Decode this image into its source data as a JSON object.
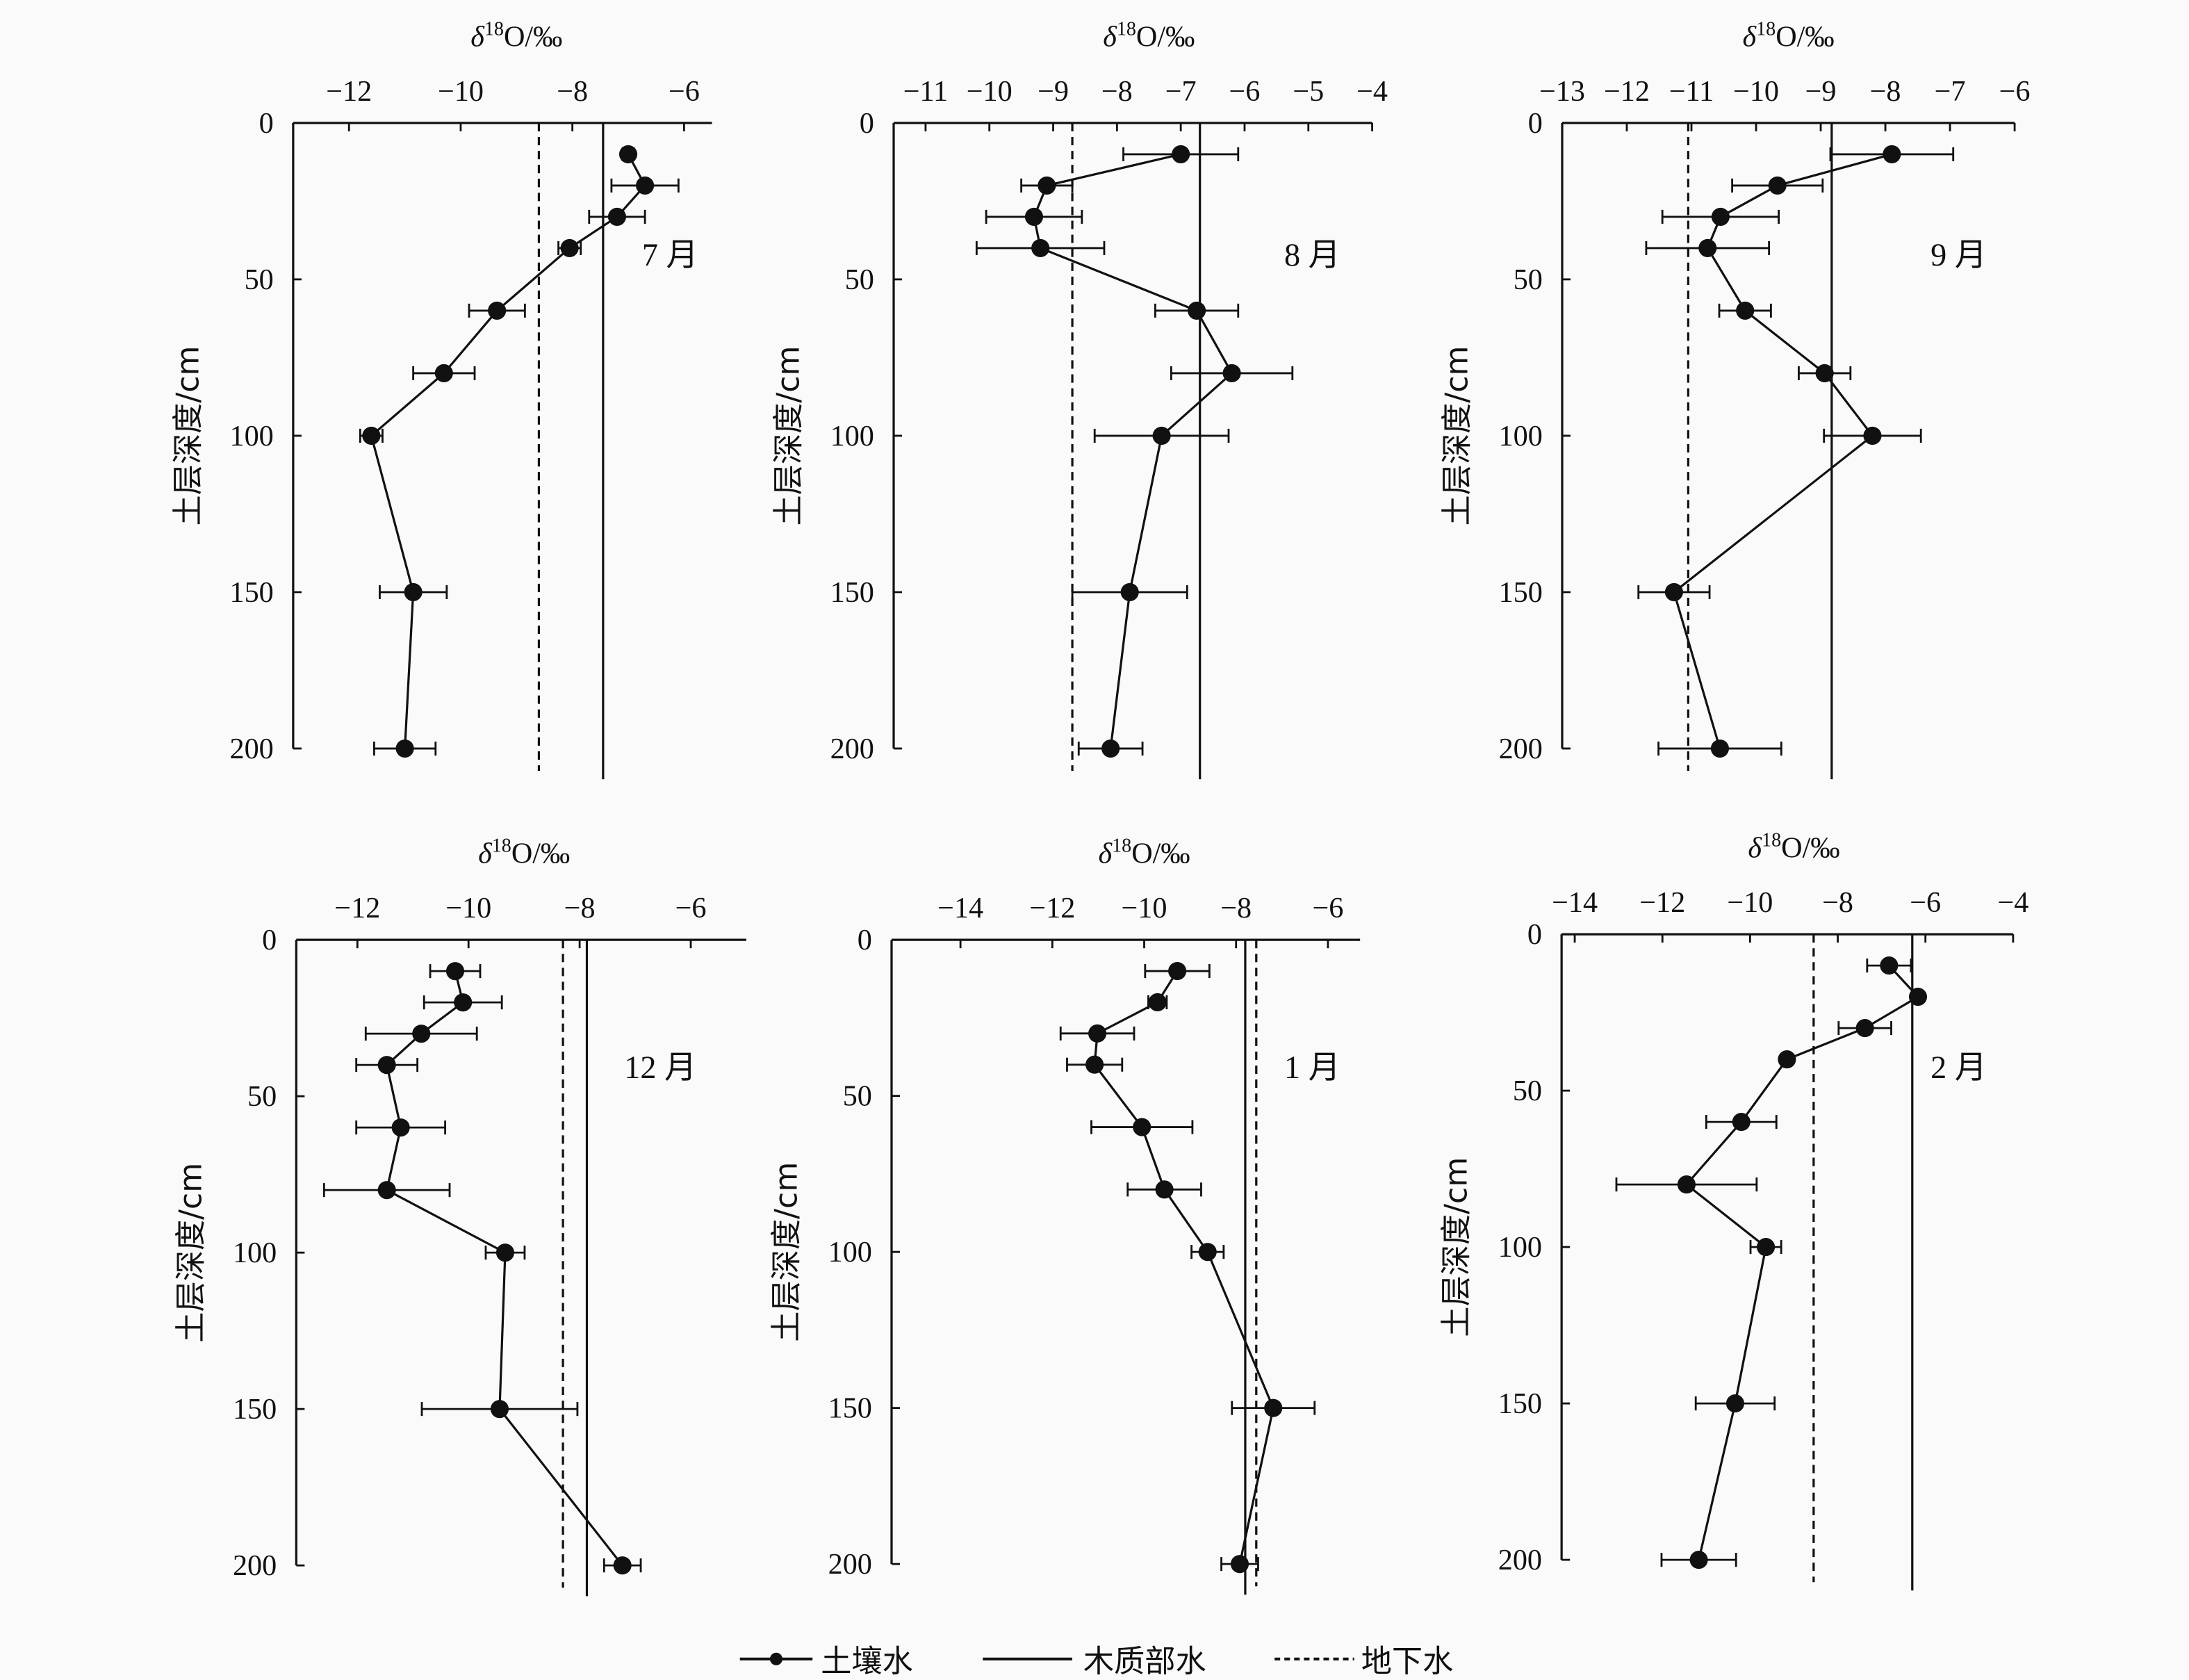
{
  "colors": {
    "ink": "#111111",
    "background": "#fafafa"
  },
  "legend": {
    "placement": "bottom-center",
    "items": [
      {
        "label": "土壤水",
        "style": "line-with-dot"
      },
      {
        "label": "木质部水",
        "style": "solid"
      },
      {
        "label": "地下水",
        "style": "dashed"
      }
    ]
  },
  "chart_data": [
    {
      "type": "line",
      "title": "7 月",
      "xlabel": "δ18O/‰",
      "ylabel": "土层深度/cm",
      "xlim": [
        -13,
        -5.5
      ],
      "ylim": [
        0,
        200
      ],
      "xticks": [
        -12,
        -10,
        -8,
        -6
      ],
      "yticks": [
        0,
        50,
        100,
        150,
        200
      ],
      "soil_water": {
        "depth": [
          10,
          20,
          30,
          40,
          60,
          80,
          100,
          150,
          200
        ],
        "values": [
          -7.0,
          -6.7,
          -7.2,
          -8.05,
          -9.35,
          -10.3,
          -11.6,
          -10.85,
          -11.0
        ],
        "errors": [
          0.1,
          0.6,
          0.5,
          0.2,
          0.5,
          0.55,
          0.2,
          0.6,
          0.55
        ]
      },
      "xylem_water": -7.45,
      "groundwater": -8.6
    },
    {
      "type": "line",
      "title": "8 月",
      "xlabel": "δ18O/‰",
      "ylabel": "土层深度/cm",
      "xlim": [
        -11.5,
        -4
      ],
      "ylim": [
        0,
        200
      ],
      "xticks": [
        -11,
        -10,
        -9,
        -8,
        -7,
        -6,
        -5,
        -4
      ],
      "yticks": [
        0,
        50,
        100,
        150,
        200
      ],
      "soil_water": {
        "depth": [
          10,
          20,
          30,
          40,
          60,
          80,
          100,
          150,
          200
        ],
        "values": [
          -7.0,
          -9.1,
          -9.3,
          -9.2,
          -6.75,
          -6.2,
          -7.3,
          -7.8,
          -8.1
        ],
        "errors": [
          0.9,
          0.4,
          0.75,
          1.0,
          0.65,
          0.95,
          1.05,
          0.9,
          0.5
        ]
      },
      "xylem_water": -6.7,
      "groundwater": -8.7
    },
    {
      "type": "line",
      "title": "9 月",
      "xlabel": "δ18O/‰",
      "ylabel": "土层深度/cm",
      "xlim": [
        -13,
        -6
      ],
      "ylim": [
        0,
        200
      ],
      "xticks": [
        -13,
        -12,
        -11,
        -10,
        -9,
        -8,
        -7,
        -6
      ],
      "yticks": [
        0,
        50,
        100,
        150,
        200
      ],
      "soil_water": {
        "depth": [
          10,
          20,
          30,
          40,
          60,
          80,
          100,
          150,
          200
        ],
        "values": [
          -7.9,
          -9.67,
          -10.55,
          -10.75,
          -10.17,
          -8.94,
          -8.2,
          -11.27,
          -10.56
        ],
        "errors": [
          0.95,
          0.7,
          0.9,
          0.95,
          0.4,
          0.4,
          0.75,
          0.55,
          0.95
        ]
      },
      "xylem_water": -8.83,
      "groundwater": -11.05
    },
    {
      "type": "line",
      "title": "12 月",
      "xlabel": "δ18O/‰",
      "ylabel": "土层深度/cm",
      "xlim": [
        -13.1,
        -5
      ],
      "ylim": [
        0,
        200
      ],
      "xticks": [
        -12,
        -10,
        -8,
        -6
      ],
      "yticks": [
        0,
        50,
        100,
        150,
        200
      ],
      "soil_water": {
        "depth": [
          10,
          20,
          30,
          40,
          60,
          80,
          100,
          150,
          200
        ],
        "values": [
          -10.24,
          -10.1,
          -10.85,
          -11.47,
          -11.22,
          -11.47,
          -9.34,
          -9.44,
          -7.23
        ],
        "errors": [
          0.45,
          0.7,
          1.0,
          0.55,
          0.8,
          1.13,
          0.35,
          1.4,
          0.33
        ]
      },
      "xylem_water": -7.87,
      "groundwater": -8.3
    },
    {
      "type": "line",
      "title": "1 月",
      "xlabel": "δ18O/‰",
      "ylabel": "土层深度/cm",
      "xlim": [
        -15.5,
        -5.3
      ],
      "ylim": [
        0,
        200
      ],
      "xticks": [
        -14,
        -12,
        -10,
        -8,
        -6
      ],
      "yticks": [
        0,
        50,
        100,
        150,
        200
      ],
      "soil_water": {
        "depth": [
          10,
          20,
          30,
          40,
          60,
          80,
          100,
          150,
          200
        ],
        "values": [
          -9.28,
          -9.71,
          -11.02,
          -11.08,
          -10.05,
          -9.56,
          -8.62,
          -7.19,
          -7.92
        ],
        "errors": [
          0.7,
          0.2,
          0.8,
          0.6,
          1.1,
          0.8,
          0.35,
          0.9,
          0.4
        ]
      },
      "xylem_water": -7.8,
      "groundwater": -7.56
    },
    {
      "type": "line",
      "title": "2 月",
      "xlabel": "δ18O/‰",
      "ylabel": "土层深度/cm",
      "xlim": [
        -14.3,
        -4
      ],
      "ylim": [
        0,
        200
      ],
      "xticks": [
        -14,
        -12,
        -10,
        -8,
        -6,
        -4
      ],
      "yticks": [
        0,
        50,
        100,
        150,
        200
      ],
      "soil_water": {
        "depth": [
          10,
          20,
          30,
          40,
          60,
          80,
          100,
          150,
          200
        ],
        "values": [
          -6.83,
          -6.17,
          -7.38,
          -9.16,
          -10.2,
          -11.45,
          -9.64,
          -10.34,
          -11.17
        ],
        "errors": [
          0.5,
          0.1,
          0.6,
          0.05,
          0.8,
          1.6,
          0.35,
          0.9,
          0.85
        ]
      },
      "xylem_water": -6.3,
      "groundwater": -8.55
    }
  ]
}
